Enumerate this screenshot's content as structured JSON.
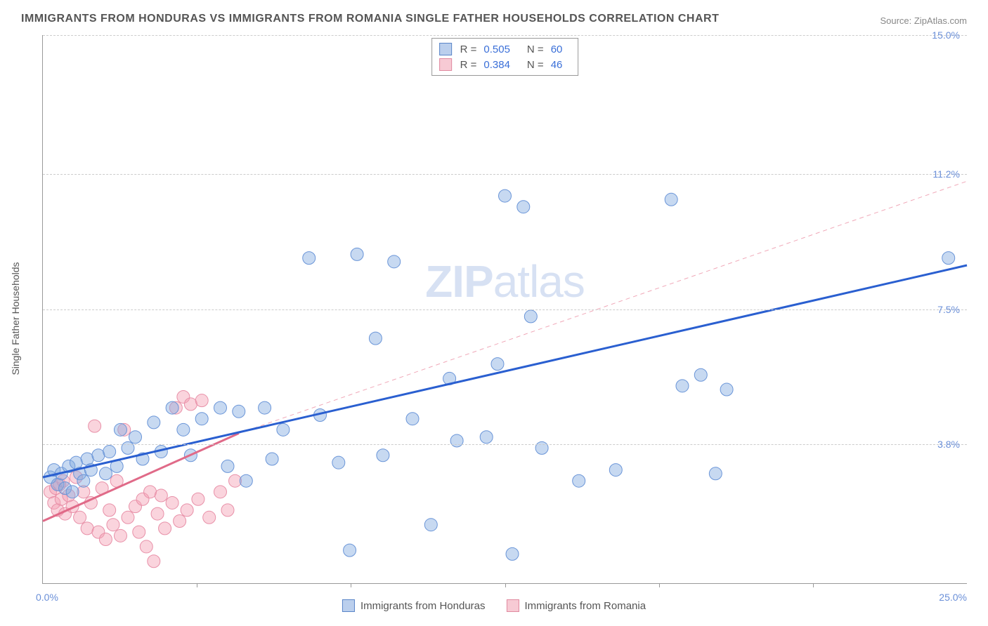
{
  "title": "IMMIGRANTS FROM HONDURAS VS IMMIGRANTS FROM ROMANIA SINGLE FATHER HOUSEHOLDS CORRELATION CHART",
  "source": "Source: ZipAtlas.com",
  "ylabel": "Single Father Households",
  "watermark_bold": "ZIP",
  "watermark_light": "atlas",
  "chart": {
    "type": "scatter",
    "xlim": [
      0,
      25.0
    ],
    "ylim": [
      0,
      15.0
    ],
    "x_tick_left": "0.0%",
    "x_tick_right": "25.0%",
    "x_minor_ticks": [
      4.167,
      8.333,
      12.5,
      16.667,
      20.833
    ],
    "y_gridlines": [
      3.8,
      7.5,
      11.2,
      15.0
    ],
    "y_tick_labels": [
      "3.8%",
      "7.5%",
      "11.2%",
      "15.0%"
    ],
    "background_color": "#ffffff",
    "grid_color": "#cccccc",
    "series": {
      "honduras": {
        "label": "Immigrants from Honduras",
        "color_fill": "rgba(130,170,225,0.45)",
        "color_stroke": "#6a95d8",
        "marker_radius": 9,
        "R": "0.505",
        "N": "60",
        "trend_solid": {
          "x1": 0,
          "y1": 2.9,
          "x2": 25.0,
          "y2": 8.7,
          "color": "#2a5fd0",
          "width": 3
        },
        "points": [
          [
            0.2,
            2.9
          ],
          [
            0.3,
            3.1
          ],
          [
            0.4,
            2.7
          ],
          [
            0.5,
            3.0
          ],
          [
            0.6,
            2.6
          ],
          [
            0.7,
            3.2
          ],
          [
            0.8,
            2.5
          ],
          [
            0.9,
            3.3
          ],
          [
            1.0,
            3.0
          ],
          [
            1.1,
            2.8
          ],
          [
            1.2,
            3.4
          ],
          [
            1.3,
            3.1
          ],
          [
            1.5,
            3.5
          ],
          [
            1.7,
            3.0
          ],
          [
            1.8,
            3.6
          ],
          [
            2.0,
            3.2
          ],
          [
            2.1,
            4.2
          ],
          [
            2.3,
            3.7
          ],
          [
            2.5,
            4.0
          ],
          [
            2.7,
            3.4
          ],
          [
            3.0,
            4.4
          ],
          [
            3.2,
            3.6
          ],
          [
            3.5,
            4.8
          ],
          [
            3.8,
            4.2
          ],
          [
            4.0,
            3.5
          ],
          [
            4.3,
            4.5
          ],
          [
            4.8,
            4.8
          ],
          [
            5.0,
            3.2
          ],
          [
            5.3,
            4.7
          ],
          [
            5.5,
            2.8
          ],
          [
            6.0,
            4.8
          ],
          [
            6.2,
            3.4
          ],
          [
            6.5,
            4.2
          ],
          [
            7.2,
            8.9
          ],
          [
            7.5,
            4.6
          ],
          [
            8.0,
            3.3
          ],
          [
            8.3,
            0.9
          ],
          [
            8.5,
            9.0
          ],
          [
            9.0,
            6.7
          ],
          [
            9.2,
            3.5
          ],
          [
            9.5,
            8.8
          ],
          [
            10.0,
            4.5
          ],
          [
            10.5,
            1.6
          ],
          [
            11.0,
            5.6
          ],
          [
            11.2,
            3.9
          ],
          [
            12.0,
            4.0
          ],
          [
            12.3,
            6.0
          ],
          [
            12.5,
            10.6
          ],
          [
            12.7,
            0.8
          ],
          [
            13.0,
            10.3
          ],
          [
            13.2,
            7.3
          ],
          [
            13.5,
            3.7
          ],
          [
            14.5,
            2.8
          ],
          [
            15.5,
            3.1
          ],
          [
            17.0,
            10.5
          ],
          [
            17.3,
            5.4
          ],
          [
            17.8,
            5.7
          ],
          [
            18.2,
            3.0
          ],
          [
            18.5,
            5.3
          ],
          [
            24.5,
            8.9
          ]
        ]
      },
      "romania": {
        "label": "Immigrants from Romania",
        "color_fill": "rgba(245,160,180,0.45)",
        "color_stroke": "#e890a8",
        "marker_radius": 9,
        "R": "0.384",
        "N": "46",
        "trend_solid": {
          "x1": 0,
          "y1": 1.7,
          "x2": 5.3,
          "y2": 4.1,
          "color": "#e06a88",
          "width": 3
        },
        "trend_dashed": {
          "x1": 5.3,
          "y1": 4.1,
          "x2": 25.0,
          "y2": 11.0,
          "color": "#f0a8b8",
          "width": 1,
          "dash": "6,5"
        },
        "points": [
          [
            0.2,
            2.5
          ],
          [
            0.3,
            2.2
          ],
          [
            0.35,
            2.6
          ],
          [
            0.4,
            2.0
          ],
          [
            0.45,
            2.7
          ],
          [
            0.5,
            2.3
          ],
          [
            0.55,
            2.8
          ],
          [
            0.6,
            1.9
          ],
          [
            0.7,
            2.4
          ],
          [
            0.8,
            2.1
          ],
          [
            0.9,
            2.9
          ],
          [
            1.0,
            1.8
          ],
          [
            1.1,
            2.5
          ],
          [
            1.2,
            1.5
          ],
          [
            1.3,
            2.2
          ],
          [
            1.4,
            4.3
          ],
          [
            1.5,
            1.4
          ],
          [
            1.6,
            2.6
          ],
          [
            1.7,
            1.2
          ],
          [
            1.8,
            2.0
          ],
          [
            1.9,
            1.6
          ],
          [
            2.0,
            2.8
          ],
          [
            2.1,
            1.3
          ],
          [
            2.2,
            4.2
          ],
          [
            2.3,
            1.8
          ],
          [
            2.5,
            2.1
          ],
          [
            2.6,
            1.4
          ],
          [
            2.7,
            2.3
          ],
          [
            2.8,
            1.0
          ],
          [
            2.9,
            2.5
          ],
          [
            3.0,
            0.6
          ],
          [
            3.1,
            1.9
          ],
          [
            3.2,
            2.4
          ],
          [
            3.3,
            1.5
          ],
          [
            3.5,
            2.2
          ],
          [
            3.6,
            4.8
          ],
          [
            3.7,
            1.7
          ],
          [
            3.8,
            5.1
          ],
          [
            3.9,
            2.0
          ],
          [
            4.0,
            4.9
          ],
          [
            4.2,
            2.3
          ],
          [
            4.3,
            5.0
          ],
          [
            4.5,
            1.8
          ],
          [
            4.8,
            2.5
          ],
          [
            5.0,
            2.0
          ],
          [
            5.2,
            2.8
          ]
        ]
      }
    }
  },
  "legend_top": {
    "r_label": "R =",
    "n_label": "N ="
  }
}
